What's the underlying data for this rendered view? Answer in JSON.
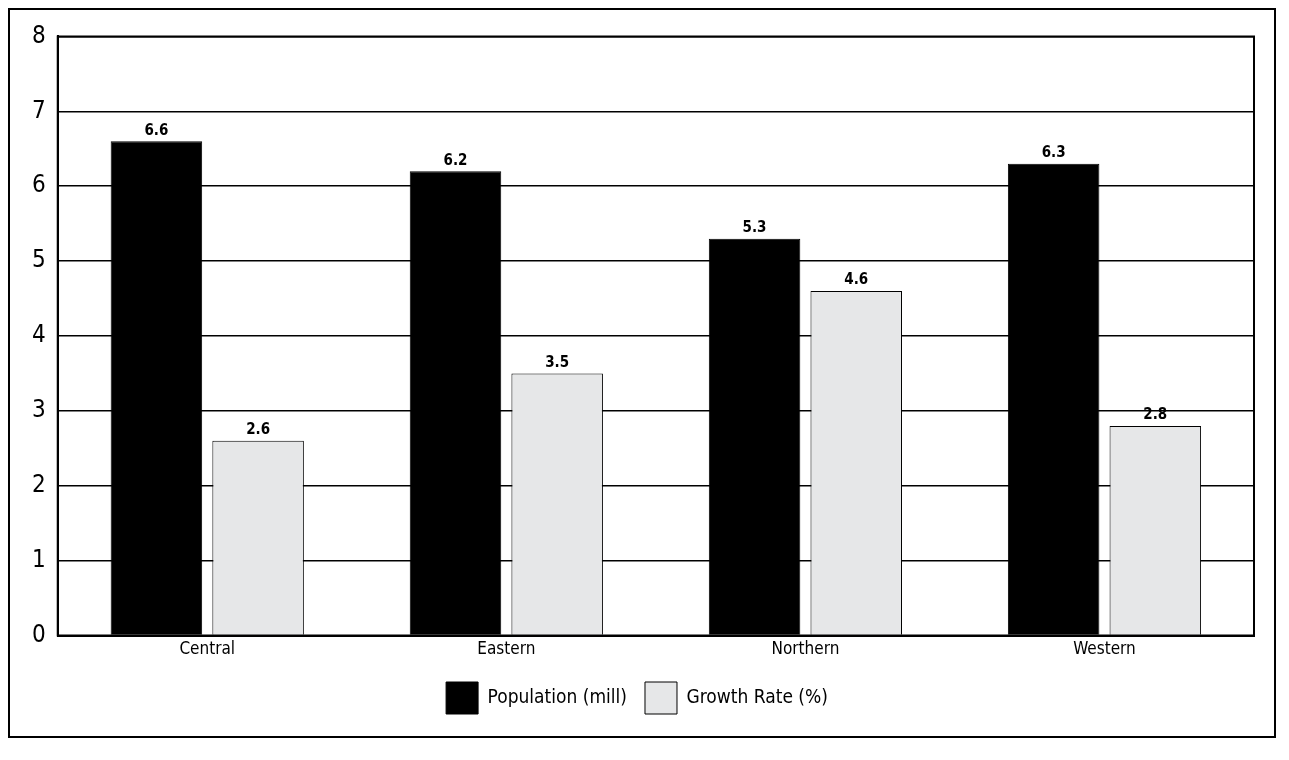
{
  "chart_data": {
    "type": "bar",
    "categories": [
      "Central",
      "Eastern",
      "Northern",
      "Western"
    ],
    "series": [
      {
        "name": "Population (mill)",
        "color": "#000000",
        "values": [
          6.6,
          6.2,
          5.3,
          6.3
        ]
      },
      {
        "name": "Growth Rate (%)",
        "color": "#e6e7e8",
        "values": [
          2.6,
          3.5,
          4.6,
          2.8
        ]
      }
    ],
    "ylim": [
      0,
      8
    ],
    "yticks": [
      0,
      1,
      2,
      3,
      4,
      5,
      6,
      7,
      8
    ],
    "grid": "y",
    "legend": "bottom",
    "data_labels": true
  }
}
